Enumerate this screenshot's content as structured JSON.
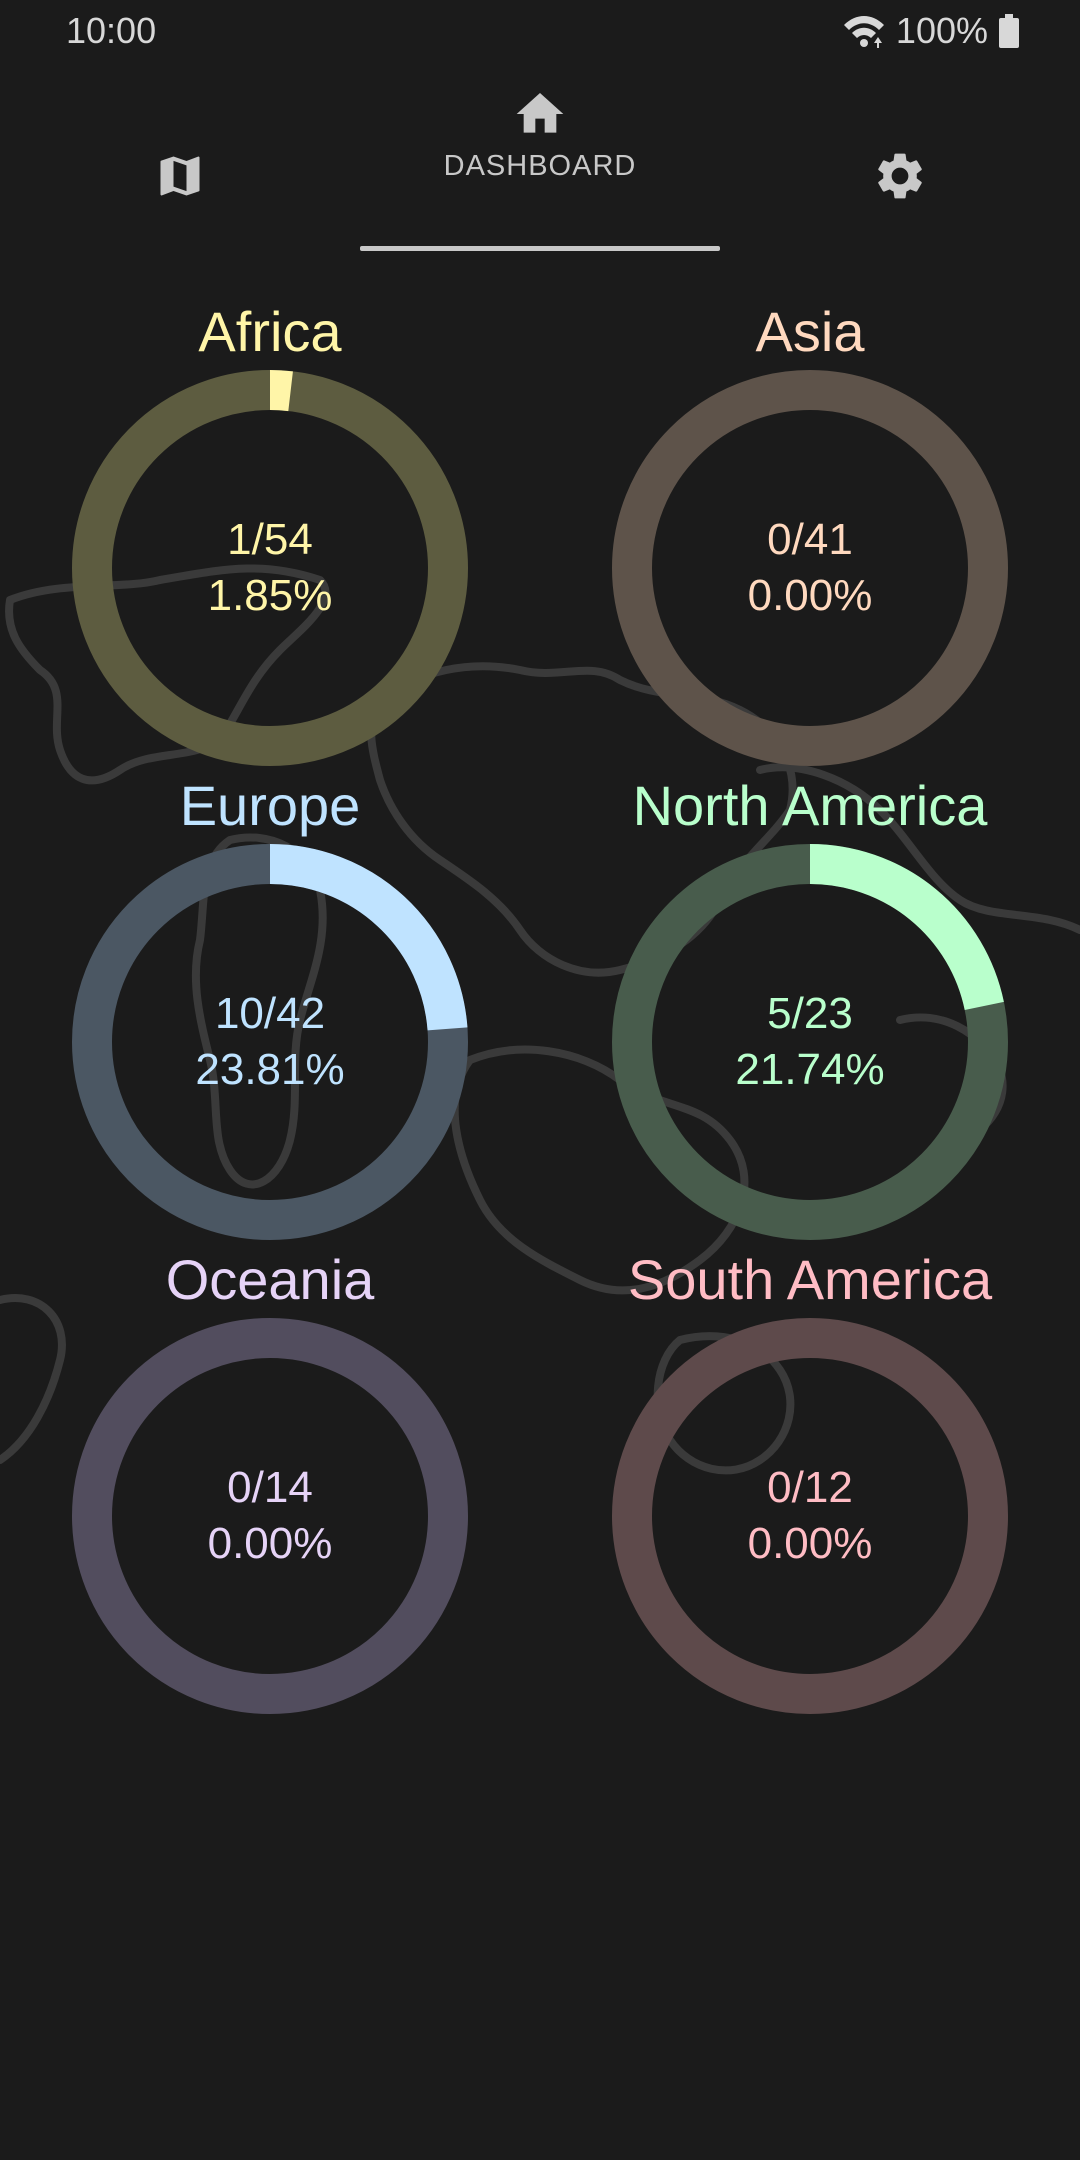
{
  "status_bar": {
    "time": "10:00",
    "battery": "100%"
  },
  "nav": {
    "dashboard_label": "DASHBOARD",
    "icons": [
      "map-icon",
      "home-icon",
      "gear-icon"
    ]
  },
  "continents": [
    {
      "name": "Africa",
      "fraction": "1/54",
      "percent": "1.85%",
      "value": 1,
      "total": 54,
      "color": "#fff5a8",
      "track": "#5d5c40"
    },
    {
      "name": "Asia",
      "fraction": "0/41",
      "percent": "0.00%",
      "value": 0,
      "total": 41,
      "color": "#ffd9bf",
      "track": "#5e534a"
    },
    {
      "name": "Europe",
      "fraction": "10/42",
      "percent": "23.81%",
      "value": 10,
      "total": 42,
      "color": "#bfe3ff",
      "track": "#4b5763"
    },
    {
      "name": "North America",
      "fraction": "5/23",
      "percent": "21.74%",
      "value": 5,
      "total": 23,
      "color": "#b9ffcc",
      "track": "#485c4c"
    },
    {
      "name": "Oceania",
      "fraction": "0/14",
      "percent": "0.00%",
      "value": 0,
      "total": 14,
      "color": "#e6d3f7",
      "track": "#524d5e"
    },
    {
      "name": "South America",
      "fraction": "0/12",
      "percent": "0.00%",
      "value": 0,
      "total": 12,
      "color": "#ffbcc4",
      "track": "#5e4a4b"
    }
  ]
}
